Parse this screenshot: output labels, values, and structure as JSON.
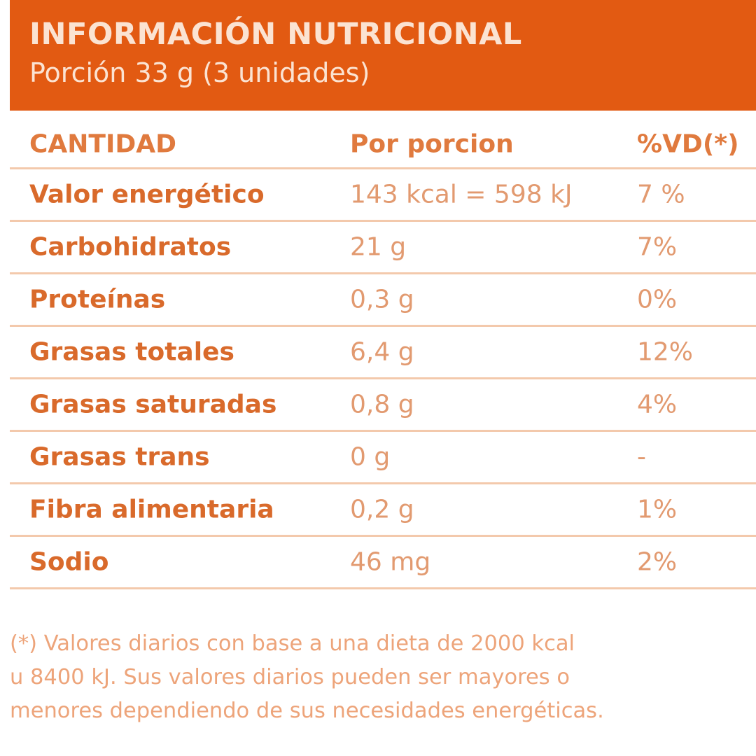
{
  "label": {
    "title": "INFORMACIÓN NUTRICIONAL",
    "portion": "Porción 33 g (3 unidades)"
  },
  "table": {
    "headers": {
      "quantity": "CANTIDAD",
      "per_portion": "Por porcion",
      "daily_value": "%VD(*)"
    },
    "rows": [
      {
        "name": "Valor energético",
        "amount": "143 kcal = 598 kJ",
        "dv": "7 %"
      },
      {
        "name": "Carbohidratos",
        "amount": "21 g",
        "dv": "7%"
      },
      {
        "name": "Proteínas",
        "amount": "0,3 g",
        "dv": "0%"
      },
      {
        "name": "Grasas totales",
        "amount": "6,4 g",
        "dv": "12%"
      },
      {
        "name": "Grasas saturadas",
        "amount": "0,8 g",
        "dv": "4%"
      },
      {
        "name": "Grasas trans",
        "amount": "0 g",
        "dv": "-"
      },
      {
        "name": "Fibra alimentaria",
        "amount": "0,2 g",
        "dv": "1%"
      },
      {
        "name": "Sodio",
        "amount": "46 mg",
        "dv": "2%"
      }
    ]
  },
  "footnote": {
    "line1": "(*) Valores diarios con base a una dieta de 2000 kcal",
    "line2": "u 8400 kJ. Sus valores diarios pueden ser mayores o",
    "line3": "menores dependiendo de sus necesidades energéticas."
  },
  "colors": {
    "header_bg": "#e25a12",
    "header_text": "#fbe3d2",
    "label_text": "#d96a2b",
    "value_text": "#e29a70",
    "divider": "#f3c9ac"
  }
}
